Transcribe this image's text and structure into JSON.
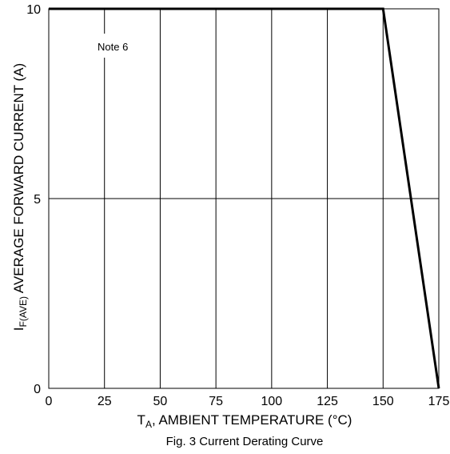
{
  "chart_data": {
    "type": "line",
    "caption": "Fig. 3 Current Derating Curve",
    "xlabel": {
      "main": "T",
      "sub": "A",
      "rest": ", AMBIENT TEMPERATURE (°C)"
    },
    "ylabel": {
      "main": "I",
      "sub": "F(AVE)",
      "rest": " AVERAGE FORWARD CURRENT (A)"
    },
    "annotation": "Note 6",
    "xlim": [
      0,
      175
    ],
    "ylim": [
      0,
      10
    ],
    "xticks": [
      0,
      25,
      50,
      75,
      100,
      125,
      150,
      175
    ],
    "yticks": [
      0,
      5,
      10
    ],
    "grid": true,
    "series": [
      {
        "x": [
          0,
          150,
          175
        ],
        "y": [
          10,
          10,
          0
        ]
      }
    ]
  }
}
